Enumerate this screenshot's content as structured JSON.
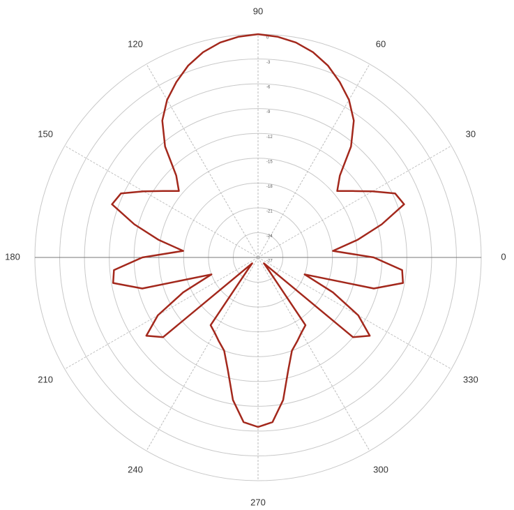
{
  "chart_data": {
    "type": "polar",
    "theta": [
      0,
      5,
      10,
      15,
      20,
      25,
      30,
      35,
      40,
      45,
      50,
      55,
      60,
      65,
      70,
      75,
      80,
      85,
      90,
      95,
      100,
      105,
      110,
      115,
      120,
      125,
      130,
      135,
      140,
      145,
      150,
      155,
      160,
      165,
      170,
      175,
      180,
      185,
      190,
      195,
      200,
      205,
      210,
      215,
      220,
      225,
      230,
      235,
      240,
      245,
      250,
      255,
      260,
      265,
      270,
      275,
      280,
      285,
      290,
      295,
      300,
      305,
      310,
      315,
      320,
      325,
      330,
      335,
      340,
      345,
      350,
      355
    ],
    "values": [
      -13,
      -17.9,
      -14.8,
      -11.5,
      -8.2,
      -8.7,
      -11,
      -13,
      -14.5,
      -13,
      -9.5,
      -6.8,
      -5,
      -3.6,
      -2.3,
      -1.3,
      -0.6,
      -0.2,
      0,
      -0.2,
      -0.6,
      -1.3,
      -2.3,
      -3.6,
      -5,
      -6.8,
      -9.5,
      -13,
      -14.5,
      -13,
      -11,
      -8.7,
      -8.2,
      -11.5,
      -14.8,
      -17.9,
      -13,
      -9.5,
      -9.2,
      -12.5,
      -21,
      -17,
      -13,
      -10.5,
      -12,
      -26,
      -25,
      -17,
      -16.5,
      -15.8,
      -15,
      -12.9,
      -9.5,
      -7,
      -6.5,
      -7,
      -9.5,
      -12.9,
      -15,
      -15.8,
      -16.5,
      -17,
      -25,
      -26,
      -12,
      -10.5,
      -13,
      -17,
      -21,
      -12.5,
      -9.2,
      -9.5
    ],
    "color": "#a3281c",
    "rlim": [
      -27,
      0
    ],
    "rticks": [
      0,
      -3,
      -6,
      -9,
      -12,
      -15,
      -18,
      -21,
      -24,
      -27
    ],
    "thetaticks": [
      0,
      30,
      60,
      90,
      120,
      150,
      180,
      210,
      240,
      270,
      300,
      330
    ],
    "grid": true
  }
}
